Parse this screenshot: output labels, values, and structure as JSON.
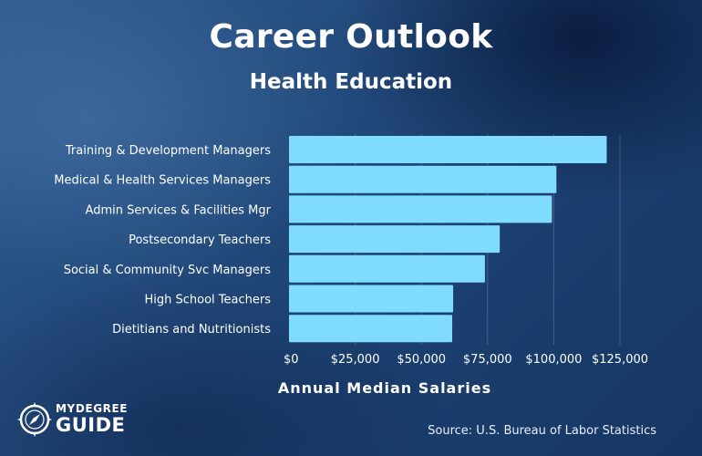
{
  "header": {
    "title": "Career Outlook",
    "subtitle": "Health Education"
  },
  "chart_data": {
    "type": "bar",
    "orientation": "horizontal",
    "categories": [
      "Training & Development Managers",
      "Medical & Health Services Managers",
      "Admin Services & Facilities Mgr",
      "Postsecondary Teachers",
      "Social & Community Svc Managers",
      "High School Teachers",
      "Dietitians and Nutritionists"
    ],
    "values": [
      120000,
      101000,
      99300,
      79600,
      74000,
      62000,
      61650
    ],
    "xlabel": "Annual Median Salaries",
    "xlim": [
      0,
      125000
    ],
    "xticks": [
      0,
      25000,
      50000,
      75000,
      100000,
      125000
    ],
    "xtick_labels": [
      "$0",
      "$25,000",
      "$50,000",
      "$75,000",
      "$100,000",
      "$125,000"
    ],
    "grid": "vertical",
    "bar_color": "#7fdcff"
  },
  "footer": {
    "source": "Source: U.S. Bureau of Labor Statistics",
    "logo_top": "MYDEGREE",
    "logo_bottom": "GUIDE",
    "logo_icon": "compass-icon"
  }
}
